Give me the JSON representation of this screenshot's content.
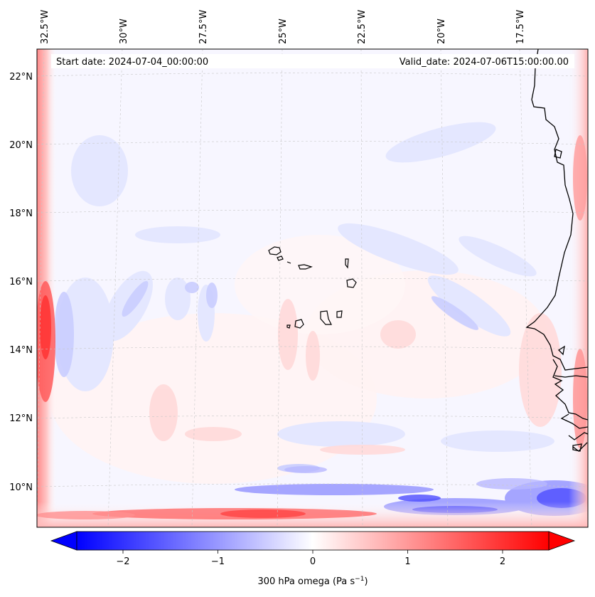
{
  "map": {
    "projection": "Lambert conformal (WRF domain)",
    "variable": "300 hPa omega",
    "start_date_label": "Start date: 2024-07-04_00:00:00",
    "valid_date_label": "Valid_date: 2024-07-06T15:00:00.00",
    "lon_labels": [
      "32.5°W",
      "30°W",
      "27.5°W",
      "25°W",
      "22.5°W",
      "20°W",
      "17.5°W"
    ],
    "lat_labels": [
      "22°N",
      "20°N",
      "18°N",
      "16°N",
      "14°N",
      "12°N",
      "10°N"
    ],
    "features": [
      "Cape Verde islands",
      "West African coastline",
      "Senegal",
      "Gambia",
      "Guinea-Bissau"
    ]
  },
  "colorbar": {
    "label_text": "300 hPa omega (Pa s",
    "label_sup": "−1",
    "label_close": ")",
    "ticks": [
      "−2",
      "−1",
      "0",
      "1",
      "2"
    ],
    "tick_values": [
      -2,
      -1,
      0,
      1,
      2
    ],
    "min": -2.7,
    "max": 2.7,
    "colormap": "bwr",
    "extend": "both"
  },
  "colors": {
    "negative": "#0000ff",
    "neutral": "#ffffff",
    "positive": "#ff0000",
    "coast": "#000000",
    "grid": "#c8c8c8"
  }
}
